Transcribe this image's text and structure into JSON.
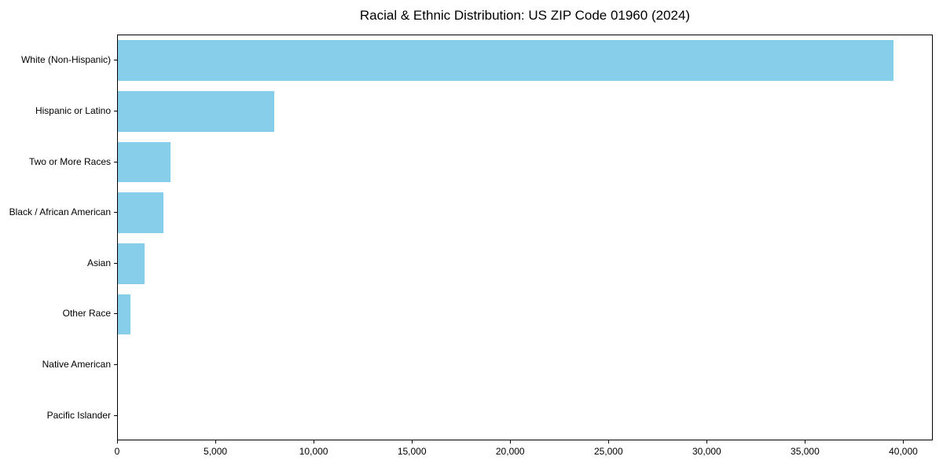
{
  "chart_data": {
    "type": "bar",
    "orientation": "horizontal",
    "title": "Racial & Ethnic Distribution: US ZIP Code 01960 (2024)",
    "categories": [
      "White (Non-Hispanic)",
      "Hispanic or Latino",
      "Two or More Races",
      "Black / African American",
      "Asian",
      "Other Race",
      "Native American",
      "Pacific Islander"
    ],
    "values": [
      39450,
      7940,
      2665,
      2320,
      1350,
      650,
      0,
      0
    ],
    "xlabel": "",
    "ylabel": "",
    "xlim": [
      0,
      41500
    ],
    "xticks": [
      0,
      5000,
      10000,
      15000,
      20000,
      25000,
      30000,
      35000,
      40000
    ],
    "xtick_labels": [
      "0",
      "5,000",
      "10,000",
      "15,000",
      "20,000",
      "25,000",
      "30,000",
      "35,000",
      "40,000"
    ],
    "bar_color": "#87CEEB",
    "frame_color": "#000000",
    "grid": false,
    "legend": null
  }
}
